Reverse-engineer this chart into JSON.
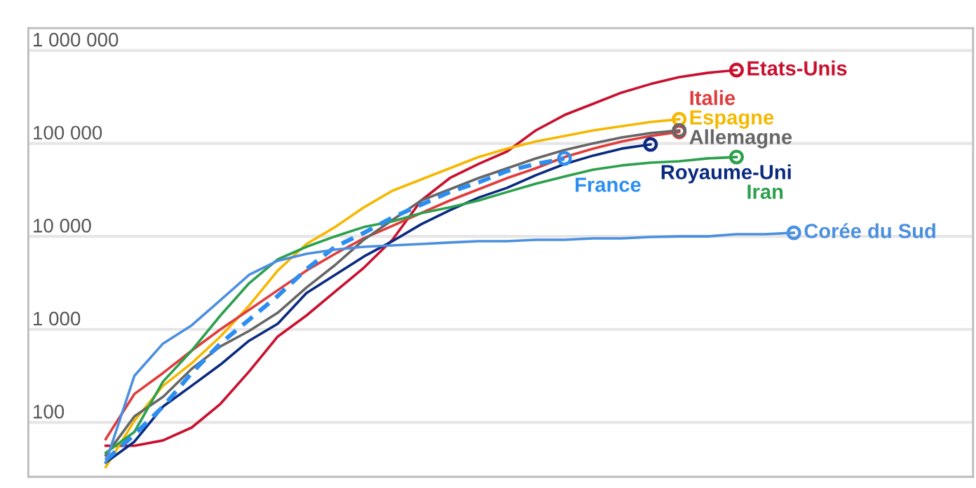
{
  "chart_data": {
    "type": "line",
    "categories": [
      null,
      null,
      null,
      null,
      null,
      null,
      null,
      null,
      null,
      null,
      null,
      null,
      null,
      null,
      null,
      null,
      null,
      null,
      null,
      null,
      null,
      null,
      null,
      null,
      null
    ],
    "log": "y",
    "ylim": [
      26,
      1740000
    ],
    "yticks": [
      {
        "value": 100,
        "label": "100"
      },
      {
        "value": 1000,
        "label": "1 000"
      },
      {
        "value": 10000,
        "label": "10 000"
      },
      {
        "value": 100000,
        "label": "100 000"
      },
      {
        "value": 1000000,
        "label": "1 000 000"
      }
    ],
    "grid": "y",
    "tick_labels": "y",
    "legend": false,
    "marker": "none",
    "line_style": "solid",
    "series": [
      {
        "name": "Etats-Unis",
        "color": "#c8102e",
        "values": [
          56,
          56,
          64,
          88,
          158,
          352,
          838,
          1410,
          2550,
          4590,
          9200,
          24300,
          42400,
          60000,
          82000,
          138000,
          202000,
          267000,
          353000,
          435000,
          517000,
          574000,
          615000,
          null,
          null
        ]
      },
      {
        "name": "Espagne",
        "color": "#f5b800",
        "values": [
          33,
          104,
          248,
          433,
          838,
          1800,
          4290,
          8290,
          12600,
          20500,
          31000,
          40900,
          54000,
          71400,
          88000,
          105000,
          120000,
          138000,
          153000,
          170000,
          182000,
          null,
          null,
          null,
          null
        ]
      },
      {
        "name": "Italie",
        "color": "#e03c3c",
        "values": [
          66,
          202,
          340,
          592,
          1000,
          1620,
          2640,
          4290,
          6500,
          9530,
          13000,
          17800,
          24300,
          32100,
          42400,
          54000,
          71400,
          88000,
          105000,
          120000,
          133000,
          null,
          null,
          null,
          null
        ]
      },
      {
        "name": "Allemagne",
        "color": "#666666",
        "values": [
          44,
          116,
          188,
          377,
          656,
          962,
          1510,
          2820,
          4920,
          9200,
          15000,
          24300,
          32100,
          42400,
          54000,
          69000,
          84900,
          100000,
          116000,
          129000,
          138000,
          null,
          null,
          null,
          null
        ]
      },
      {
        "name": "Royaume-Uni",
        "color": "#0a2a80",
        "values": [
          37,
          62,
          148,
          248,
          418,
          755,
          1150,
          2460,
          3860,
          6070,
          8890,
          13500,
          19100,
          26100,
          33300,
          45500,
          60000,
          74000,
          88000,
          97500,
          null,
          null,
          null,
          null,
          null
        ]
      },
      {
        "name": "Iran",
        "color": "#2ca04c",
        "values": [
          47,
          79,
          275,
          592,
          1410,
          3130,
          5660,
          7730,
          10000,
          12600,
          14500,
          17800,
          20500,
          24300,
          30000,
          36900,
          44000,
          52200,
          58000,
          62100,
          64300,
          69000,
          71400,
          null,
          null
        ]
      },
      {
        "name": "France",
        "color": "#2b8ef0",
        "line_style": "dashed",
        "values": [
          39,
          74,
          148,
          340,
          705,
          1270,
          2290,
          4440,
          7730,
          10900,
          16000,
          21900,
          30000,
          38000,
          50500,
          60000,
          69000,
          null,
          null,
          null,
          null,
          null,
          null,
          null,
          null
        ]
      },
      {
        "name": "Corée du Sud",
        "color": "#4a8fe0",
        "values": [
          37,
          317,
          705,
          1107,
          2065,
          3860,
          5470,
          6500,
          7210,
          7730,
          8000,
          8290,
          8590,
          8890,
          8890,
          9200,
          9200,
          9530,
          9530,
          9860,
          10000,
          10000,
          10560,
          10560,
          10940
        ]
      }
    ]
  }
}
